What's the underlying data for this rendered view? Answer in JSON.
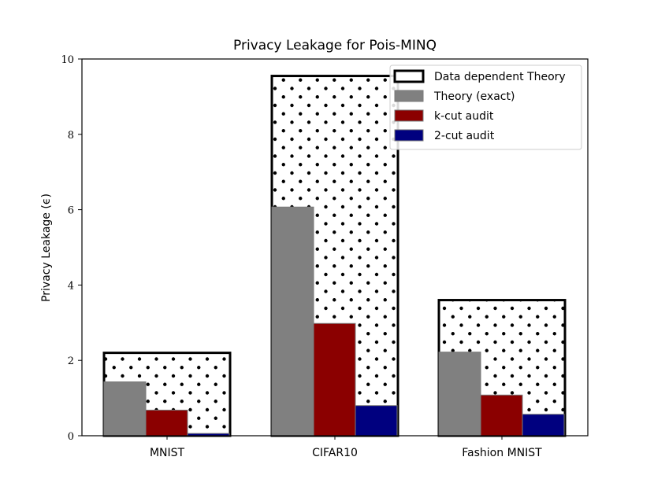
{
  "chart_data": {
    "type": "bar",
    "title": "Privacy Leakage for Pois-MINQ",
    "xlabel": "",
    "ylabel": "Privacy Leakage (ϵ)",
    "ylim": [
      0,
      10
    ],
    "yticks": [
      0,
      2,
      4,
      6,
      8,
      10
    ],
    "categories": [
      "MNIST",
      "CIFAR10",
      "Fashion MNIST"
    ],
    "series": [
      {
        "name": "Data dependent Theory",
        "values": [
          2.2,
          9.55,
          3.6
        ],
        "style": "outline-dots",
        "color": "#000000"
      },
      {
        "name": "Theory (exact)",
        "values": [
          1.43,
          6.07,
          2.22
        ],
        "style": "fill",
        "color": "#808080"
      },
      {
        "name": "k-cut audit",
        "values": [
          0.68,
          2.98,
          1.08
        ],
        "style": "fill",
        "color": "#8b0000"
      },
      {
        "name": "2-cut audit",
        "values": [
          0.06,
          0.8,
          0.57
        ],
        "style": "fill",
        "color": "#00007f"
      }
    ],
    "legend_position": "top-right",
    "grid": false
  }
}
